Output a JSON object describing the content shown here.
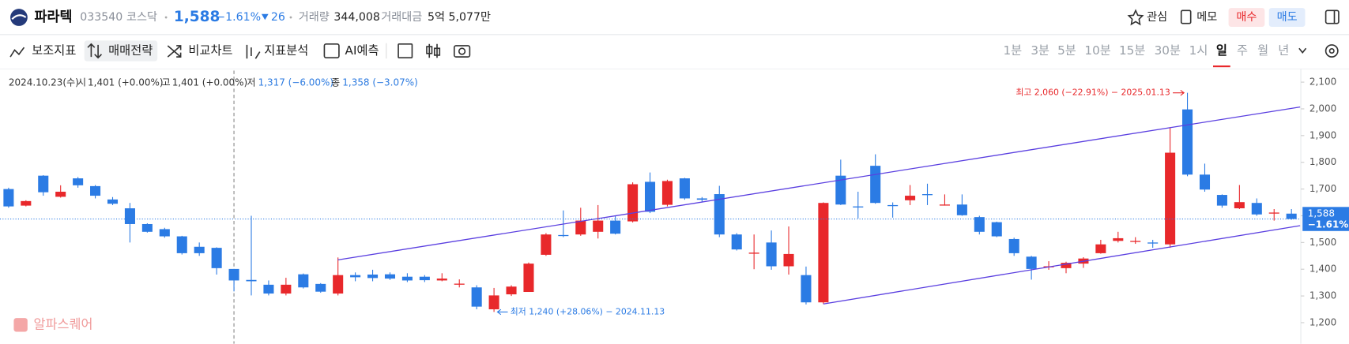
{
  "header": {
    "name": "파라텍",
    "code": "033540",
    "market": "코스닥",
    "price": "1,588",
    "change_rate": "−1.61%",
    "change": "26",
    "volume_label": "거래량",
    "volume": "344,008",
    "amount_label": "거래대금",
    "amount": "5억 5,077만",
    "buttons": [
      "관심",
      "메모",
      "매수",
      "매도"
    ]
  },
  "toolbar": {
    "tools": [
      "보조지표",
      "매매전략",
      "비교차트",
      "지표분석",
      "AI예측"
    ],
    "periods": [
      "1분",
      "3분",
      "5분",
      "10분",
      "15분",
      "30분",
      "1시",
      "일",
      "주",
      "월",
      "년"
    ],
    "selected_period_index": 7
  },
  "info": {
    "date": "2024.10.23(수)",
    "fields": [
      {
        "label": "시",
        "value": "1,401 (+0.00%)"
      },
      {
        "label": "고",
        "value": "1,401 (+0.00%)"
      },
      {
        "label": "저",
        "value": "1,317 (−6.00%)"
      },
      {
        "label": "종",
        "value": "1,358 (−3.07%)"
      }
    ]
  },
  "watermark": "알파스퀘어",
  "chart_data": {
    "type": "candlestick",
    "up_color": "#e8282b",
    "down_color": "#2b7be4",
    "ylim": [
      1121,
      2143
    ],
    "yticks": [
      {
        "value": 1200,
        "label": "1,200"
      },
      {
        "value": 1300,
        "label": "1,300"
      },
      {
        "value": 1400,
        "label": "1,400"
      },
      {
        "value": 1500,
        "label": "1,500"
      },
      {
        "value": 1600,
        "label": "1,600"
      },
      {
        "value": 1700,
        "label": "1,700"
      },
      {
        "value": 1800,
        "label": "1,800"
      },
      {
        "value": 1900,
        "label": "1,900"
      },
      {
        "value": 2000,
        "label": "2,000"
      },
      {
        "value": 2100,
        "label": "2,100"
      }
    ],
    "crosshair_index": 13,
    "candles": [
      {
        "open": 1700,
        "high": 1705,
        "low": 1630,
        "close": 1635
      },
      {
        "open": 1638,
        "high": 1658,
        "low": 1635,
        "close": 1655
      },
      {
        "open": 1750,
        "high": 1752,
        "low": 1675,
        "close": 1688
      },
      {
        "open": 1671,
        "high": 1714,
        "low": 1668,
        "close": 1690
      },
      {
        "open": 1740,
        "high": 1745,
        "low": 1705,
        "close": 1714
      },
      {
        "open": 1711,
        "high": 1715,
        "low": 1665,
        "close": 1675
      },
      {
        "open": 1661,
        "high": 1670,
        "low": 1640,
        "close": 1645
      },
      {
        "open": 1628,
        "high": 1648,
        "low": 1500,
        "close": 1569
      },
      {
        "open": 1569,
        "high": 1572,
        "low": 1537,
        "close": 1540
      },
      {
        "open": 1550,
        "high": 1555,
        "low": 1518,
        "close": 1523
      },
      {
        "open": 1523,
        "high": 1525,
        "low": 1455,
        "close": 1460
      },
      {
        "open": 1484,
        "high": 1500,
        "low": 1450,
        "close": 1460
      },
      {
        "open": 1480,
        "high": 1482,
        "low": 1380,
        "close": 1404
      },
      {
        "open": 1401,
        "high": 1401,
        "low": 1317,
        "close": 1358
      },
      {
        "open": 1360,
        "high": 1600,
        "low": 1302,
        "close": 1355
      },
      {
        "open": 1342,
        "high": 1358,
        "low": 1302,
        "close": 1309
      },
      {
        "open": 1309,
        "high": 1368,
        "low": 1302,
        "close": 1342
      },
      {
        "open": 1381,
        "high": 1384,
        "low": 1328,
        "close": 1332
      },
      {
        "open": 1345,
        "high": 1348,
        "low": 1312,
        "close": 1316
      },
      {
        "open": 1309,
        "high": 1444,
        "low": 1302,
        "close": 1378
      },
      {
        "open": 1378,
        "high": 1388,
        "low": 1355,
        "close": 1370
      },
      {
        "open": 1380,
        "high": 1398,
        "low": 1355,
        "close": 1367
      },
      {
        "open": 1381,
        "high": 1388,
        "low": 1360,
        "close": 1365
      },
      {
        "open": 1372,
        "high": 1385,
        "low": 1352,
        "close": 1358
      },
      {
        "open": 1372,
        "high": 1378,
        "low": 1352,
        "close": 1359
      },
      {
        "open": 1358,
        "high": 1385,
        "low": 1355,
        "close": 1365
      },
      {
        "open": 1344,
        "high": 1362,
        "low": 1332,
        "close": 1346
      },
      {
        "open": 1332,
        "high": 1340,
        "low": 1250,
        "close": 1260
      },
      {
        "open": 1250,
        "high": 1330,
        "low": 1240,
        "close": 1302
      },
      {
        "open": 1306,
        "high": 1340,
        "low": 1300,
        "close": 1335
      },
      {
        "open": 1315,
        "high": 1425,
        "low": 1315,
        "close": 1421
      },
      {
        "open": 1454,
        "high": 1535,
        "low": 1450,
        "close": 1530
      },
      {
        "open": 1528,
        "high": 1620,
        "low": 1520,
        "close": 1525
      },
      {
        "open": 1530,
        "high": 1630,
        "low": 1525,
        "close": 1582
      },
      {
        "open": 1540,
        "high": 1640,
        "low": 1515,
        "close": 1582
      },
      {
        "open": 1582,
        "high": 1600,
        "low": 1530,
        "close": 1533
      },
      {
        "open": 1579,
        "high": 1725,
        "low": 1575,
        "close": 1718
      },
      {
        "open": 1727,
        "high": 1762,
        "low": 1610,
        "close": 1615
      },
      {
        "open": 1641,
        "high": 1735,
        "low": 1635,
        "close": 1730
      },
      {
        "open": 1740,
        "high": 1742,
        "low": 1660,
        "close": 1665
      },
      {
        "open": 1665,
        "high": 1670,
        "low": 1650,
        "close": 1660
      },
      {
        "open": 1681,
        "high": 1712,
        "low": 1520,
        "close": 1530
      },
      {
        "open": 1530,
        "high": 1535,
        "low": 1470,
        "close": 1474
      },
      {
        "open": 1458,
        "high": 1530,
        "low": 1400,
        "close": 1462
      },
      {
        "open": 1500,
        "high": 1545,
        "low": 1398,
        "close": 1411
      },
      {
        "open": 1411,
        "high": 1560,
        "low": 1380,
        "close": 1457
      },
      {
        "open": 1378,
        "high": 1410,
        "low": 1268,
        "close": 1276
      },
      {
        "open": 1276,
        "high": 1650,
        "low": 1270,
        "close": 1648
      },
      {
        "open": 1750,
        "high": 1810,
        "low": 1640,
        "close": 1642
      },
      {
        "open": 1635,
        "high": 1690,
        "low": 1590,
        "close": 1632
      },
      {
        "open": 1787,
        "high": 1830,
        "low": 1645,
        "close": 1648
      },
      {
        "open": 1640,
        "high": 1650,
        "low": 1593,
        "close": 1637
      },
      {
        "open": 1658,
        "high": 1715,
        "low": 1640,
        "close": 1675
      },
      {
        "open": 1681,
        "high": 1720,
        "low": 1640,
        "close": 1678
      },
      {
        "open": 1640,
        "high": 1680,
        "low": 1638,
        "close": 1642
      },
      {
        "open": 1642,
        "high": 1680,
        "low": 1600,
        "close": 1602
      },
      {
        "open": 1595,
        "high": 1600,
        "low": 1530,
        "close": 1540
      },
      {
        "open": 1576,
        "high": 1578,
        "low": 1520,
        "close": 1523
      },
      {
        "open": 1513,
        "high": 1518,
        "low": 1450,
        "close": 1460
      },
      {
        "open": 1447,
        "high": 1450,
        "low": 1361,
        "close": 1401
      },
      {
        "open": 1409,
        "high": 1430,
        "low": 1398,
        "close": 1411
      },
      {
        "open": 1404,
        "high": 1428,
        "low": 1385,
        "close": 1424
      },
      {
        "open": 1421,
        "high": 1445,
        "low": 1405,
        "close": 1440
      },
      {
        "open": 1460,
        "high": 1510,
        "low": 1458,
        "close": 1493
      },
      {
        "open": 1506,
        "high": 1540,
        "low": 1500,
        "close": 1516
      },
      {
        "open": 1505,
        "high": 1520,
        "low": 1495,
        "close": 1506
      },
      {
        "open": 1500,
        "high": 1510,
        "low": 1480,
        "close": 1497
      },
      {
        "open": 1493,
        "high": 1930,
        "low": 1480,
        "close": 1836
      },
      {
        "open": 1998,
        "high": 2060,
        "low": 1748,
        "close": 1754
      },
      {
        "open": 1754,
        "high": 1795,
        "low": 1690,
        "close": 1698
      },
      {
        "open": 1678,
        "high": 1680,
        "low": 1630,
        "close": 1638
      },
      {
        "open": 1628,
        "high": 1715,
        "low": 1625,
        "close": 1651
      },
      {
        "open": 1648,
        "high": 1665,
        "low": 1600,
        "close": 1605
      },
      {
        "open": 1610,
        "high": 1625,
        "low": 1582,
        "close": 1612
      },
      {
        "open": 1608,
        "high": 1625,
        "low": 1585,
        "close": 1588
      }
    ],
    "trendlines": [
      {
        "color": "#5a3fe0",
        "points": [
          [
            19,
            1435
          ],
          [
            74.5,
            2007
          ]
        ]
      },
      {
        "color": "#5a3fe0",
        "points": [
          [
            47,
            1270
          ],
          [
            74.5,
            1563
          ]
        ]
      }
    ],
    "annotations": [
      {
        "text": "최고 2,060 (−22.91%) − 2025.01.13",
        "index": 68,
        "price": 2060,
        "side": "left",
        "color": "#e8282b"
      },
      {
        "text": "최저 1,240 (+28.06%) − 2024.11.13",
        "index": 28,
        "price": 1240,
        "side": "right",
        "color": "#2b7be4"
      }
    ]
  }
}
